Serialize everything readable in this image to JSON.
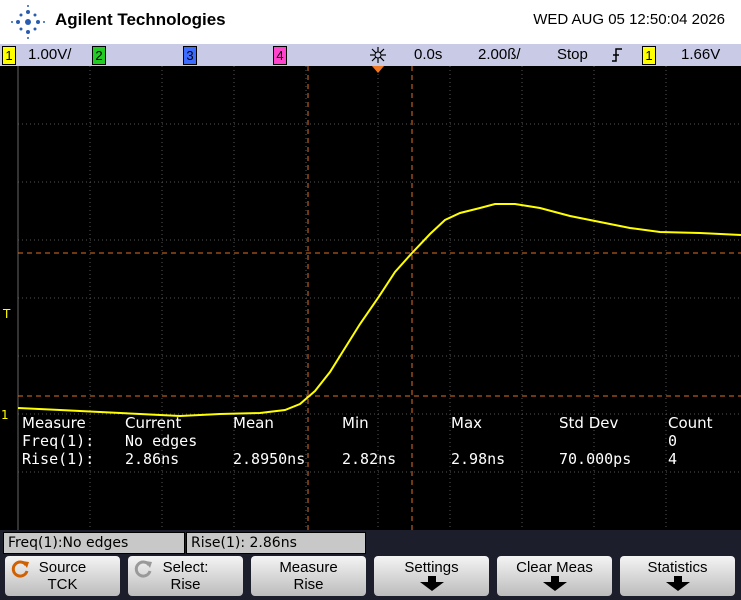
{
  "header": {
    "brand": "Agilent Technologies",
    "datetime": "WED AUG 05 12:50:04 2026"
  },
  "status_bar": {
    "ch1": "1",
    "ch1_scale": "1.00V/",
    "ch2": "2",
    "ch3": "3",
    "ch4": "4",
    "delay": "0.0s",
    "timebase": "2.00ß/",
    "run_state": "Stop",
    "trigger_channel": "1",
    "trigger_level": "1.66V"
  },
  "screen_markers": {
    "trigger": "T",
    "ch1": "1"
  },
  "measurements": {
    "headers": [
      "Measure",
      "Current",
      "Mean",
      "Min",
      "Max",
      "Std Dev",
      "Count"
    ],
    "rows": [
      [
        "Freq(1):",
        "No edges",
        null,
        null,
        null,
        null,
        "0"
      ],
      [
        "Rise(1):",
        "2.86ns",
        "2.8950ns",
        "2.82ns",
        "2.98ns",
        "70.000ps",
        "4"
      ]
    ]
  },
  "readouts": [
    "Freq(1):No edges",
    "Rise(1): 2.86ns"
  ],
  "softkeys": [
    [
      "Source",
      "TCK"
    ],
    [
      "Select:",
      "Rise"
    ],
    [
      "Measure",
      "Rise"
    ],
    [
      "Settings"
    ],
    [
      "Clear Meas"
    ],
    [
      "Statistics"
    ]
  ]
}
